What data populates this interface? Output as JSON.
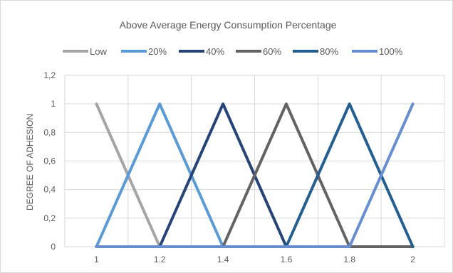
{
  "chart_data": {
    "type": "line",
    "title": "Above Average  Energy Consumption Percentage",
    "xlabel": "",
    "ylabel": "DEGREE OF ADHESION",
    "x_ticks": [
      "1",
      "1.2",
      "1.4",
      "1.6",
      "1.8",
      "2"
    ],
    "y_ticks": [
      "0",
      "0,2",
      "0,4",
      "0,6",
      "0,8",
      "1",
      "1,2"
    ],
    "xlim": [
      1,
      2
    ],
    "ylim": [
      0,
      1.2
    ],
    "grid": true,
    "legend_position": "top",
    "series": [
      {
        "name": "Low",
        "color": "#a5a5a5",
        "x": [
          1,
          1.2,
          2
        ],
        "y": [
          1,
          0,
          0
        ]
      },
      {
        "name": "20%",
        "color": "#5b9bd5",
        "x": [
          1,
          1.2,
          1.4,
          2
        ],
        "y": [
          0,
          1,
          0,
          0
        ]
      },
      {
        "name": "40%",
        "color": "#264478",
        "x": [
          1,
          1.2,
          1.4,
          1.6,
          2
        ],
        "y": [
          0,
          0,
          1,
          0,
          0
        ]
      },
      {
        "name": "60%",
        "color": "#636363",
        "x": [
          1,
          1.4,
          1.6,
          1.8,
          2
        ],
        "y": [
          0,
          0,
          1,
          0,
          0
        ]
      },
      {
        "name": "80%",
        "color": "#255e91",
        "x": [
          1,
          1.6,
          1.8,
          2
        ],
        "y": [
          0,
          0,
          1,
          0
        ]
      },
      {
        "name": "100%",
        "color": "#698ed0",
        "x": [
          1,
          1.8,
          2
        ],
        "y": [
          0,
          0,
          1
        ]
      }
    ]
  }
}
